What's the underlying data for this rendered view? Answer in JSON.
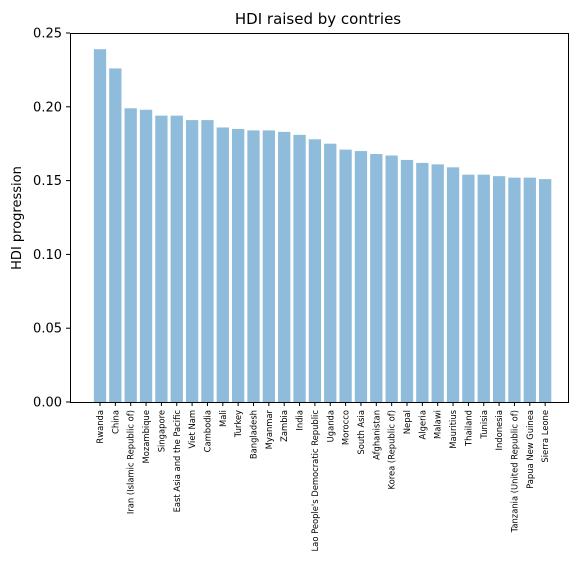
{
  "chart_data": {
    "type": "bar",
    "title": "HDI raised by contries",
    "xlabel": "",
    "ylabel": "HDI progression",
    "ylim": [
      0,
      0.25
    ],
    "yticks": [
      "0.00",
      "0.05",
      "0.10",
      "0.15",
      "0.20",
      "0.25"
    ],
    "ytick_values": [
      0,
      0.05,
      0.1,
      0.15,
      0.2,
      0.25
    ],
    "bar_color": "#8fbcdb",
    "categories": [
      "Rwanda",
      "China",
      "Iran (Islamic Republic of)",
      "Mozambique",
      "Singapore",
      "East Asia and the Pacific",
      "Viet Nam",
      "Cambodia",
      "Mali",
      "Turkey",
      "Bangladesh",
      "Myanmar",
      "Zambia",
      "India",
      "Lao People's Democratic Republic",
      "Uganda",
      "Morocco",
      "South Asia",
      "Afghanistan",
      "Korea (Republic of)",
      "Nepal",
      "Algeria",
      "Malawi",
      "Mauritius",
      "Thailand",
      "Tunisia",
      "Indonesia",
      "Tanzania (United Republic of)",
      "Papua New Guinea",
      "Sierra Leone"
    ],
    "values": [
      0.239,
      0.226,
      0.199,
      0.198,
      0.194,
      0.194,
      0.191,
      0.191,
      0.186,
      0.185,
      0.184,
      0.184,
      0.183,
      0.181,
      0.178,
      0.175,
      0.171,
      0.17,
      0.168,
      0.167,
      0.164,
      0.162,
      0.161,
      0.159,
      0.154,
      0.154,
      0.153,
      0.152,
      0.152,
      0.151
    ]
  }
}
